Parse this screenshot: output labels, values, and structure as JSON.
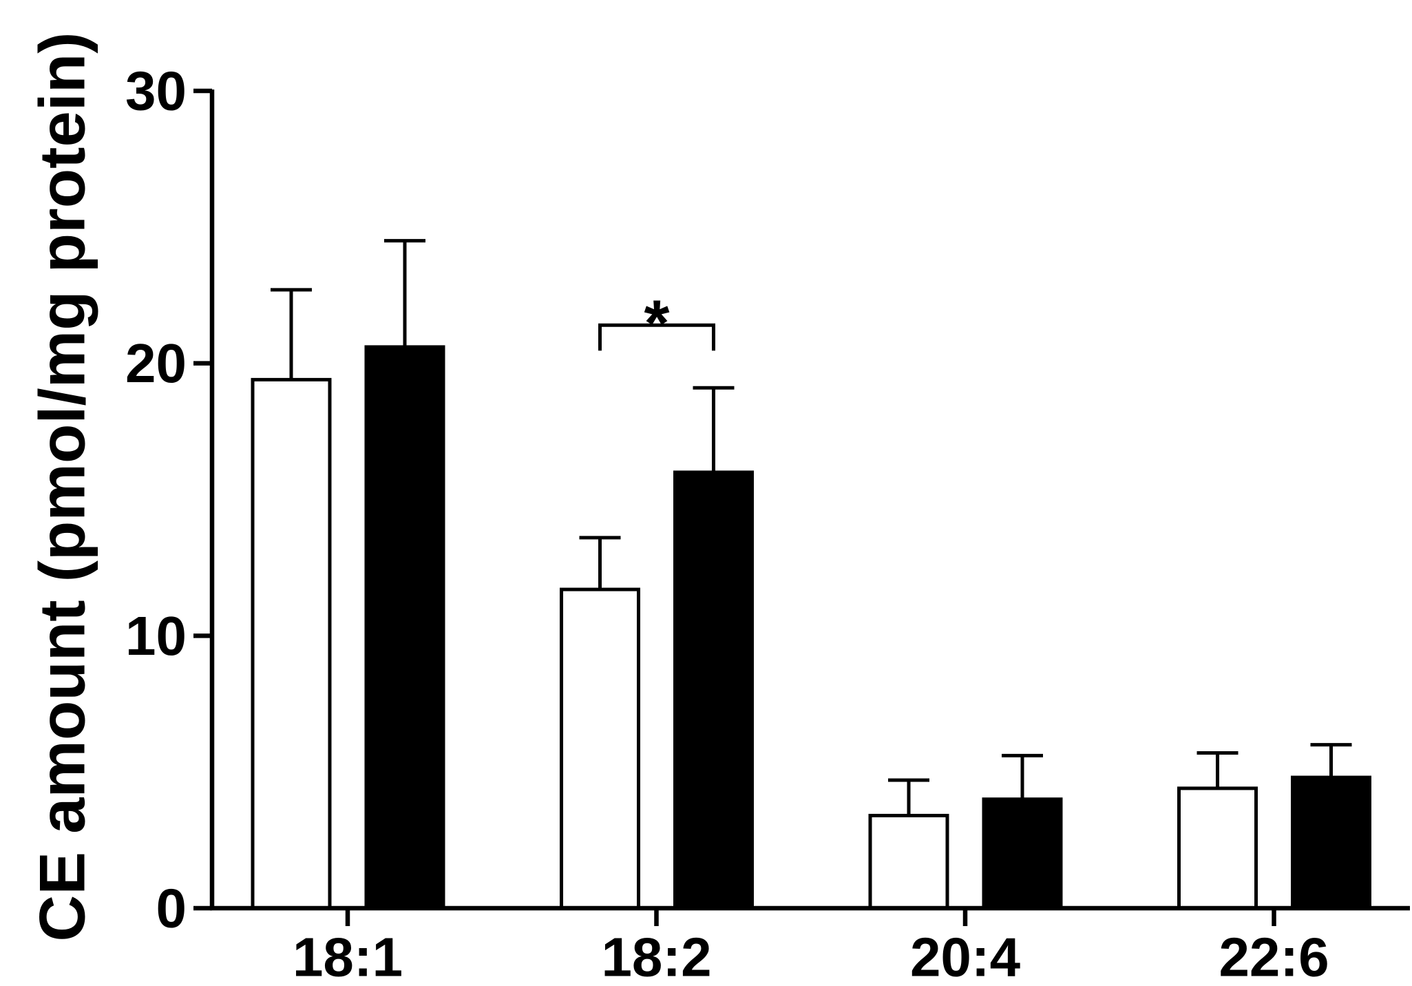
{
  "chart_data": {
    "type": "bar",
    "title": "",
    "xlabel": "",
    "ylabel": "CE amount (pmol/mg protein)",
    "ylim": [
      0,
      30
    ],
    "yticks": [
      0,
      10,
      20,
      30
    ],
    "grid": false,
    "categories": [
      "18:1",
      "18:2",
      "20:4",
      "22:6"
    ],
    "series": [
      {
        "values": [
          19.4,
          11.7,
          3.4,
          4.4
        ],
        "errors": [
          3.3,
          1.9,
          1.3,
          1.3
        ],
        "fill": "#ffffff",
        "stroke": "#000000"
      },
      {
        "values": [
          20.6,
          16.0,
          4.0,
          4.8
        ],
        "errors": [
          3.9,
          3.1,
          1.6,
          1.2
        ],
        "fill": "#000000",
        "stroke": "#000000"
      }
    ],
    "annotations": [
      {
        "text": "*",
        "category": "18:2",
        "between_series": [
          0,
          1
        ]
      }
    ]
  }
}
